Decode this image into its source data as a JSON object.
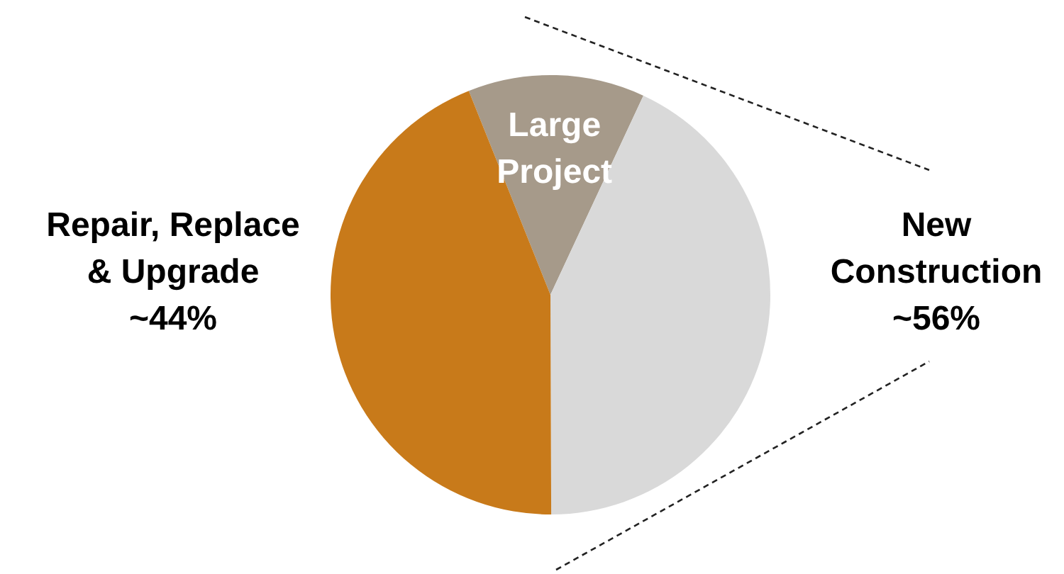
{
  "chart_data": {
    "type": "pie",
    "categories": [
      "Large Project",
      null,
      "Repair, Replace & Upgrade"
    ],
    "values": [
      13,
      43,
      44
    ],
    "colors": [
      "#a69a8a",
      "#d9d9d9",
      "#c87a1a"
    ],
    "value_labels": [
      null,
      null,
      "~44%"
    ],
    "annotations": [
      "New Construction\n~56%"
    ],
    "legend": false
  }
}
